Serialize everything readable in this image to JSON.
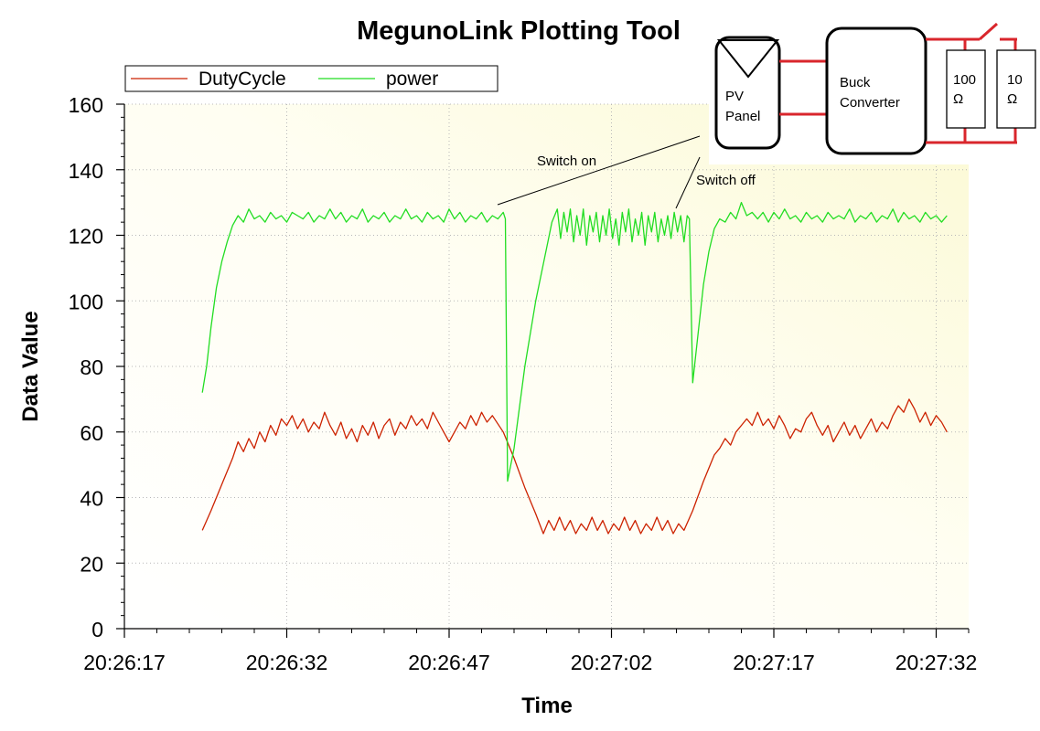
{
  "chart_data": {
    "type": "line",
    "title": "MegunoLink Plotting Tool",
    "xlabel": "Time",
    "ylabel": "Data Value",
    "x_start": "20:26:17",
    "x_end": "20:27:35",
    "xlim": [
      0,
      78
    ],
    "x_ticks": [
      {
        "t": 0,
        "label": "20:26:17"
      },
      {
        "t": 15,
        "label": "20:26:32"
      },
      {
        "t": 30,
        "label": "20:26:47"
      },
      {
        "t": 45,
        "label": "20:27:02"
      },
      {
        "t": 60,
        "label": "20:27:17"
      },
      {
        "t": 75,
        "label": "20:27:32"
      }
    ],
    "ylim": [
      0,
      160
    ],
    "y_ticks": [
      0,
      20,
      40,
      60,
      80,
      100,
      120,
      140,
      160
    ],
    "grid": true,
    "legend": "top-left",
    "series": [
      {
        "name": "DutyCycle",
        "color": "#cc2200",
        "points": [
          [
            7.2,
            30
          ],
          [
            8.0,
            36
          ],
          [
            9.0,
            44
          ],
          [
            10.0,
            52
          ],
          [
            10.5,
            57
          ],
          [
            11.0,
            54
          ],
          [
            11.5,
            58
          ],
          [
            12.0,
            55
          ],
          [
            12.5,
            60
          ],
          [
            13.0,
            57
          ],
          [
            13.5,
            62
          ],
          [
            14.0,
            59
          ],
          [
            14.5,
            64
          ],
          [
            15.0,
            62
          ],
          [
            15.5,
            65
          ],
          [
            16.0,
            61
          ],
          [
            16.5,
            64
          ],
          [
            17.0,
            60
          ],
          [
            17.5,
            63
          ],
          [
            18.0,
            61
          ],
          [
            18.5,
            66
          ],
          [
            19.0,
            62
          ],
          [
            19.5,
            59
          ],
          [
            20.0,
            63
          ],
          [
            20.5,
            58
          ],
          [
            21.0,
            61
          ],
          [
            21.5,
            57
          ],
          [
            22.0,
            62
          ],
          [
            22.5,
            59
          ],
          [
            23.0,
            63
          ],
          [
            23.5,
            58
          ],
          [
            24.0,
            62
          ],
          [
            24.5,
            64
          ],
          [
            25.0,
            59
          ],
          [
            25.5,
            63
          ],
          [
            26.0,
            61
          ],
          [
            26.5,
            65
          ],
          [
            27.0,
            62
          ],
          [
            27.5,
            64
          ],
          [
            28.0,
            61
          ],
          [
            28.5,
            66
          ],
          [
            29.0,
            63
          ],
          [
            29.5,
            60
          ],
          [
            30.0,
            57
          ],
          [
            30.5,
            60
          ],
          [
            31.0,
            63
          ],
          [
            31.5,
            61
          ],
          [
            32.0,
            65
          ],
          [
            32.5,
            62
          ],
          [
            33.0,
            66
          ],
          [
            33.5,
            63
          ],
          [
            34.0,
            65
          ],
          [
            35.0,
            60
          ],
          [
            36.0,
            52
          ],
          [
            37.0,
            43
          ],
          [
            38.0,
            35
          ],
          [
            38.7,
            29
          ],
          [
            39.2,
            33
          ],
          [
            39.7,
            30
          ],
          [
            40.2,
            34
          ],
          [
            40.7,
            30
          ],
          [
            41.2,
            33
          ],
          [
            41.7,
            29
          ],
          [
            42.2,
            32
          ],
          [
            42.7,
            30
          ],
          [
            43.2,
            34
          ],
          [
            43.7,
            30
          ],
          [
            44.2,
            33
          ],
          [
            44.7,
            29
          ],
          [
            45.2,
            32
          ],
          [
            45.7,
            30
          ],
          [
            46.2,
            34
          ],
          [
            46.7,
            30
          ],
          [
            47.2,
            33
          ],
          [
            47.7,
            29
          ],
          [
            48.2,
            32
          ],
          [
            48.7,
            30
          ],
          [
            49.2,
            34
          ],
          [
            49.7,
            30
          ],
          [
            50.2,
            33
          ],
          [
            50.7,
            29
          ],
          [
            51.2,
            32
          ],
          [
            51.7,
            30
          ],
          [
            52.5,
            36
          ],
          [
            53.5,
            45
          ],
          [
            54.5,
            53
          ],
          [
            55.0,
            55
          ],
          [
            55.5,
            58
          ],
          [
            56.0,
            56
          ],
          [
            56.5,
            60
          ],
          [
            57.0,
            62
          ],
          [
            57.5,
            64
          ],
          [
            58.0,
            62
          ],
          [
            58.5,
            66
          ],
          [
            59.0,
            62
          ],
          [
            59.5,
            64
          ],
          [
            60.0,
            61
          ],
          [
            60.5,
            65
          ],
          [
            61.0,
            62
          ],
          [
            61.5,
            58
          ],
          [
            62.0,
            61
          ],
          [
            62.5,
            60
          ],
          [
            63.0,
            64
          ],
          [
            63.5,
            66
          ],
          [
            64.0,
            62
          ],
          [
            64.5,
            59
          ],
          [
            65.0,
            62
          ],
          [
            65.5,
            57
          ],
          [
            66.0,
            60
          ],
          [
            66.5,
            63
          ],
          [
            67.0,
            59
          ],
          [
            67.5,
            62
          ],
          [
            68.0,
            58
          ],
          [
            68.5,
            61
          ],
          [
            69.0,
            64
          ],
          [
            69.5,
            60
          ],
          [
            70.0,
            63
          ],
          [
            70.5,
            61
          ],
          [
            71.0,
            65
          ],
          [
            71.5,
            68
          ],
          [
            72.0,
            66
          ],
          [
            72.5,
            70
          ],
          [
            73.0,
            67
          ],
          [
            73.5,
            63
          ],
          [
            74.0,
            66
          ],
          [
            74.5,
            62
          ],
          [
            75.0,
            65
          ],
          [
            75.5,
            63
          ],
          [
            76.0,
            60
          ]
        ]
      },
      {
        "name": "power",
        "color": "#22dd22",
        "points": [
          [
            7.2,
            72
          ],
          [
            7.6,
            80
          ],
          [
            8.0,
            92
          ],
          [
            8.5,
            104
          ],
          [
            9.0,
            112
          ],
          [
            9.5,
            118
          ],
          [
            10.0,
            123
          ],
          [
            10.5,
            126
          ],
          [
            11.0,
            124
          ],
          [
            11.5,
            128
          ],
          [
            12.0,
            125
          ],
          [
            12.5,
            126
          ],
          [
            13.0,
            124
          ],
          [
            13.5,
            127
          ],
          [
            14.0,
            125
          ],
          [
            14.5,
            126
          ],
          [
            15.0,
            124
          ],
          [
            15.5,
            127
          ],
          [
            16.0,
            126
          ],
          [
            16.5,
            125
          ],
          [
            17.0,
            127
          ],
          [
            17.5,
            124
          ],
          [
            18.0,
            126
          ],
          [
            18.5,
            125
          ],
          [
            19.0,
            128
          ],
          [
            19.5,
            125
          ],
          [
            20.0,
            127
          ],
          [
            20.5,
            124
          ],
          [
            21.0,
            126
          ],
          [
            21.5,
            125
          ],
          [
            22.0,
            128
          ],
          [
            22.5,
            124
          ],
          [
            23.0,
            126
          ],
          [
            23.5,
            125
          ],
          [
            24.0,
            127
          ],
          [
            24.5,
            124
          ],
          [
            25.0,
            126
          ],
          [
            25.5,
            125
          ],
          [
            26.0,
            128
          ],
          [
            26.5,
            125
          ],
          [
            27.0,
            126
          ],
          [
            27.5,
            124
          ],
          [
            28.0,
            127
          ],
          [
            28.5,
            125
          ],
          [
            29.0,
            126
          ],
          [
            29.5,
            124
          ],
          [
            30.0,
            128
          ],
          [
            30.5,
            125
          ],
          [
            31.0,
            127
          ],
          [
            31.5,
            124
          ],
          [
            32.0,
            126
          ],
          [
            32.5,
            125
          ],
          [
            33.0,
            127
          ],
          [
            33.5,
            124
          ],
          [
            34.0,
            126
          ],
          [
            34.5,
            125
          ],
          [
            35.0,
            127
          ],
          [
            35.2,
            125
          ],
          [
            35.4,
            45
          ],
          [
            36.0,
            55
          ],
          [
            37.0,
            80
          ],
          [
            38.0,
            100
          ],
          [
            39.0,
            116
          ],
          [
            39.5,
            124
          ],
          [
            40.0,
            128
          ],
          [
            40.3,
            119
          ],
          [
            40.6,
            127
          ],
          [
            40.9,
            121
          ],
          [
            41.2,
            128
          ],
          [
            41.5,
            118
          ],
          [
            41.8,
            126
          ],
          [
            42.1,
            120
          ],
          [
            42.4,
            128
          ],
          [
            42.7,
            117
          ],
          [
            43.0,
            126
          ],
          [
            43.3,
            121
          ],
          [
            43.6,
            127
          ],
          [
            43.9,
            118
          ],
          [
            44.2,
            126
          ],
          [
            44.5,
            120
          ],
          [
            44.8,
            128
          ],
          [
            45.1,
            119
          ],
          [
            45.4,
            125
          ],
          [
            45.7,
            117
          ],
          [
            46.0,
            127
          ],
          [
            46.3,
            121
          ],
          [
            46.6,
            128
          ],
          [
            46.9,
            118
          ],
          [
            47.2,
            125
          ],
          [
            47.5,
            120
          ],
          [
            47.8,
            127
          ],
          [
            48.1,
            117
          ],
          [
            48.4,
            126
          ],
          [
            48.7,
            121
          ],
          [
            49.0,
            127
          ],
          [
            49.3,
            118
          ],
          [
            49.6,
            125
          ],
          [
            49.9,
            120
          ],
          [
            50.2,
            126
          ],
          [
            50.5,
            119
          ],
          [
            50.8,
            127
          ],
          [
            51.1,
            121
          ],
          [
            51.4,
            126
          ],
          [
            51.7,
            118
          ],
          [
            52.0,
            126
          ],
          [
            52.2,
            125
          ],
          [
            52.5,
            75
          ],
          [
            53.0,
            90
          ],
          [
            53.5,
            105
          ],
          [
            54.0,
            115
          ],
          [
            54.5,
            122
          ],
          [
            55.0,
            125
          ],
          [
            55.5,
            124
          ],
          [
            56.0,
            127
          ],
          [
            56.5,
            125
          ],
          [
            57.0,
            130
          ],
          [
            57.5,
            126
          ],
          [
            58.0,
            127
          ],
          [
            58.5,
            125
          ],
          [
            59.0,
            127
          ],
          [
            59.5,
            124
          ],
          [
            60.0,
            127
          ],
          [
            60.5,
            125
          ],
          [
            61.0,
            128
          ],
          [
            61.5,
            125
          ],
          [
            62.0,
            126
          ],
          [
            62.5,
            124
          ],
          [
            63.0,
            127
          ],
          [
            63.5,
            125
          ],
          [
            64.0,
            126
          ],
          [
            64.5,
            124
          ],
          [
            65.0,
            127
          ],
          [
            65.5,
            125
          ],
          [
            66.0,
            126
          ],
          [
            66.5,
            125
          ],
          [
            67.0,
            128
          ],
          [
            67.5,
            124
          ],
          [
            68.0,
            126
          ],
          [
            68.5,
            125
          ],
          [
            69.0,
            127
          ],
          [
            69.5,
            124
          ],
          [
            70.0,
            126
          ],
          [
            70.5,
            125
          ],
          [
            71.0,
            128
          ],
          [
            71.5,
            124
          ],
          [
            72.0,
            127
          ],
          [
            72.5,
            125
          ],
          [
            73.0,
            126
          ],
          [
            73.5,
            124
          ],
          [
            74.0,
            127
          ],
          [
            74.5,
            125
          ],
          [
            75.0,
            126
          ],
          [
            75.5,
            124
          ],
          [
            76.0,
            126
          ]
        ]
      }
    ],
    "annotations": [
      {
        "text": "Switch on"
      },
      {
        "text": "Switch off"
      }
    ]
  },
  "inset_diagram": {
    "pv_panel_label": [
      "PV",
      "Panel"
    ],
    "buck_label": [
      "Buck",
      "Converter"
    ],
    "resistor_1_label": [
      "100",
      "Ω"
    ],
    "resistor_2_label": [
      "10",
      "Ω"
    ]
  }
}
